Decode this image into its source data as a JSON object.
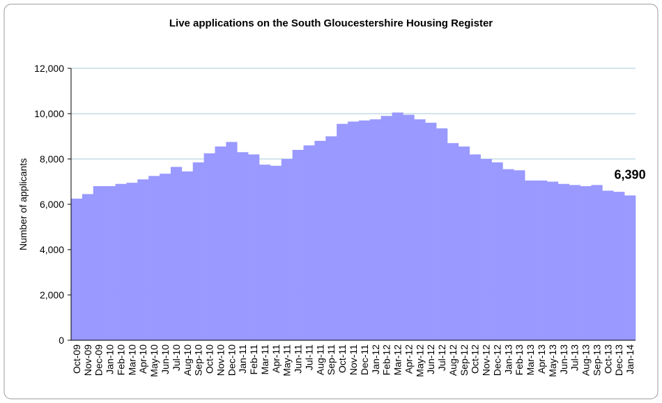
{
  "chart_data": {
    "type": "bar",
    "title": "Live applications on the South Gloucestershire Housing Register",
    "y_label": "Number of applicants",
    "categories": [
      "Oct-09",
      "Nov-09",
      "Dec-09",
      "Jan-10",
      "Feb-10",
      "Mar-10",
      "Apr-10",
      "May-10",
      "Jun-10",
      "Jul-10",
      "Aug-10",
      "Sep-10",
      "Oct-10",
      "Nov-10",
      "Dec-10",
      "Jan-11",
      "Feb-11",
      "Mar-11",
      "Apr-11",
      "May-11",
      "Jun-11",
      "Jul-11",
      "Aug-11",
      "Sep-11",
      "Oct-11",
      "Nov-11",
      "Dec-11",
      "Jan-12",
      "Feb-12",
      "Mar-12",
      "Apr-12",
      "May-12",
      "Jun-12",
      "Jul-12",
      "Aug-12",
      "Sep-12",
      "Oct-12",
      "Nov-12",
      "Dec-12",
      "Jan-13",
      "Feb-13",
      "Mar-13",
      "Apr-13",
      "May-13",
      "Jun-13",
      "Jul-13",
      "Aug-13",
      "Sep-13",
      "Oct-13",
      "Dec-13",
      "Jan-14"
    ],
    "values": [
      6250,
      6450,
      6800,
      6800,
      6900,
      6950,
      7100,
      7250,
      7350,
      7650,
      7450,
      7850,
      8250,
      8550,
      8750,
      8300,
      8200,
      7750,
      7700,
      8000,
      8400,
      8600,
      8800,
      9000,
      9550,
      9650,
      9700,
      9750,
      9900,
      10050,
      9950,
      9750,
      9600,
      9350,
      8700,
      8550,
      8200,
      8000,
      7850,
      7550,
      7500,
      7050,
      7050,
      7000,
      6900,
      6850,
      6800,
      6850,
      6600,
      6550,
      6390
    ],
    "value_labels": [
      null,
      null,
      null,
      null,
      null,
      null,
      null,
      null,
      null,
      null,
      null,
      null,
      null,
      null,
      null,
      null,
      null,
      null,
      null,
      null,
      null,
      null,
      null,
      null,
      null,
      null,
      null,
      null,
      null,
      null,
      null,
      null,
      null,
      null,
      null,
      null,
      null,
      null,
      null,
      null,
      null,
      null,
      null,
      null,
      null,
      null,
      null,
      null,
      null,
      null,
      "6,390"
    ],
    "color": "#9999ff",
    "ylim": [
      0,
      12000
    ],
    "yticks": [
      0,
      {
        "value": 2000,
        "label": "2,000"
      },
      {
        "value": 4000,
        "label": "4,000"
      },
      {
        "value": 6000,
        "label": "6,000"
      },
      {
        "value": 8000,
        "label": "8,000"
      },
      {
        "value": 10000,
        "label": "10,000"
      },
      {
        "value": 12000,
        "label": "12,000"
      }
    ],
    "grid": true
  }
}
